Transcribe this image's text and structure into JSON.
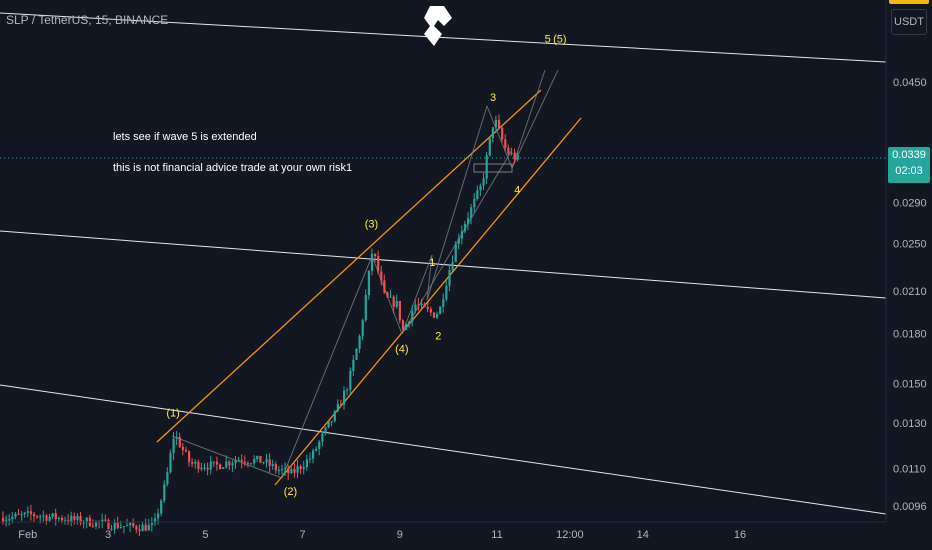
{
  "symbol_line": "SLP / TetherUS, 15, BINANCE",
  "unit": "USDT",
  "current_price": "0.0339",
  "countdown": "02:03",
  "notes": [
    "lets see if wave 5 is extended",
    "this is not financial advice trade at your own risk1"
  ],
  "colors": {
    "background": "#131722",
    "up": "#26a69a",
    "down": "#ef5350",
    "channel": "#f5921b",
    "wave_label": "#ffeb3b",
    "trend_lines": "#ffffff",
    "axis_text": "#b2b5be"
  },
  "logo_icon": "brand-logo-icon",
  "chart_data": {
    "type": "candlestick",
    "title": "",
    "x_ticks": [
      "Feb",
      "3",
      "5",
      "7",
      "9",
      "11",
      "12:00",
      "14",
      "16"
    ],
    "y_ticks": [
      0.045,
      0.035,
      0.029,
      0.025,
      0.021,
      0.018,
      0.015,
      0.013,
      0.011,
      0.0096
    ],
    "y_scale": "log",
    "ylim": [
      0.0089,
      0.056
    ],
    "wave_labels": [
      {
        "text": "(1)",
        "x": "Feb 4 10:00",
        "y": 0.0133
      },
      {
        "text": "(2)",
        "x": "Feb 6 20:00",
        "y": 0.01
      },
      {
        "text": "(3)",
        "x": "Feb 8 12:00",
        "y": 0.0265
      },
      {
        "text": "(4)",
        "x": "Feb 9 03:00",
        "y": 0.0168
      },
      {
        "text": "1",
        "x": "Feb 9 18:00",
        "y": 0.023
      },
      {
        "text": "2",
        "x": "Feb 9 21:00",
        "y": 0.0176
      },
      {
        "text": "3",
        "x": "Feb 11 00:00",
        "y": 0.042
      },
      {
        "text": "4",
        "x": "Feb 11 12:00",
        "y": 0.03
      },
      {
        "text": "5",
        "x": "Feb 12 03:00",
        "y": 0.052
      },
      {
        "text": "(5)",
        "x": "Feb 12 09:00",
        "y": 0.052
      }
    ],
    "price_path": [
      {
        "t": "Feb 1 00:00",
        "p": 0.0092
      },
      {
        "t": "Feb 1 12:00",
        "p": 0.0093
      },
      {
        "t": "Feb 2 00:00",
        "p": 0.0092
      },
      {
        "t": "Feb 2 12:00",
        "p": 0.0091
      },
      {
        "t": "Feb 3 00:00",
        "p": 0.009
      },
      {
        "t": "Feb 3 12:00",
        "p": 0.0089
      },
      {
        "t": "Feb 4 00:00",
        "p": 0.0089
      },
      {
        "t": "Feb 4 06:00",
        "p": 0.0105
      },
      {
        "t": "Feb 4 10:00",
        "p": 0.0125
      },
      {
        "t": "Feb 4 18:00",
        "p": 0.0112
      },
      {
        "t": "Feb 5 06:00",
        "p": 0.0111
      },
      {
        "t": "Feb 5 18:00",
        "p": 0.0114
      },
      {
        "t": "Feb 6 06:00",
        "p": 0.0113
      },
      {
        "t": "Feb 6 12:00",
        "p": 0.011
      },
      {
        "t": "Feb 6 20:00",
        "p": 0.0108
      },
      {
        "t": "Feb 7 06:00",
        "p": 0.0115
      },
      {
        "t": "Feb 7 12:00",
        "p": 0.0125
      },
      {
        "t": "Feb 7 18:00",
        "p": 0.0135
      },
      {
        "t": "Feb 8 00:00",
        "p": 0.015
      },
      {
        "t": "Feb 8 06:00",
        "p": 0.018
      },
      {
        "t": "Feb 8 12:00",
        "p": 0.0245
      },
      {
        "t": "Feb 8 18:00",
        "p": 0.0205
      },
      {
        "t": "Feb 9 00:00",
        "p": 0.02
      },
      {
        "t": "Feb 9 03:00",
        "p": 0.0182
      },
      {
        "t": "Feb 9 09:00",
        "p": 0.02
      },
      {
        "t": "Feb 9 18:00",
        "p": 0.0193
      },
      {
        "t": "Feb 9 21:00",
        "p": 0.0195
      },
      {
        "t": "Feb 10 00:00",
        "p": 0.0215
      },
      {
        "t": "Feb 10 06:00",
        "p": 0.0255
      },
      {
        "t": "Feb 10 12:00",
        "p": 0.028
      },
      {
        "t": "Feb 10 18:00",
        "p": 0.031
      },
      {
        "t": "Feb 11 00:00",
        "p": 0.0395
      },
      {
        "t": "Feb 11 06:00",
        "p": 0.035
      },
      {
        "t": "Feb 11 12:00",
        "p": 0.0339
      }
    ]
  }
}
